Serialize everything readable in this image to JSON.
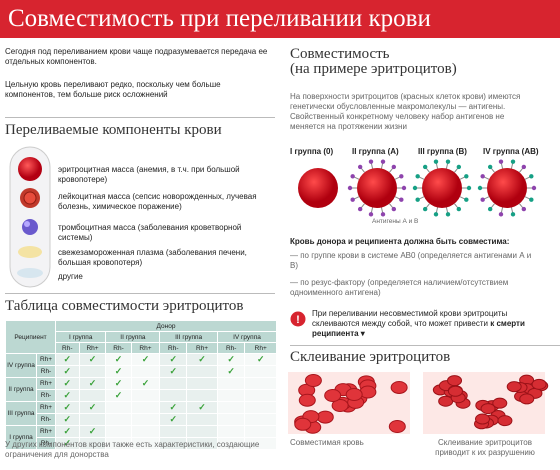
{
  "header": {
    "title": "Совместимость при переливании крови"
  },
  "intro": [
    "Сегодня под переливанием крови чаще подразумевается передача ее отдельных компонентов.",
    "Цельную кровь переливают редко, поскольку чем больше компонентов, тем больше риск осложнений"
  ],
  "components": {
    "title": "Переливаемые компоненты крови",
    "items": [
      "эритроцитная масса (анемия, в т.ч. при большой кровопотере)",
      "лейкоцитная масса (сепсис новорожденных, лучевая болезнь, химическое поражение)",
      "тромбоцитная масса (заболевания кроветворной системы)",
      "свежезамороженная плазма (заболевания печени, большая кровопотеря)",
      "другие"
    ]
  },
  "table": {
    "title": "Таблица совместимости эритроцитов",
    "recipient_header": "Реципиент",
    "donor_header": "Донор",
    "donor_groups": [
      {
        "group": "I группа",
        "rh": [
          "Rh-",
          "Rh+"
        ]
      },
      {
        "group": "II группа",
        "rh": [
          "Rh-",
          "Rh+"
        ]
      },
      {
        "group": "III группа",
        "rh": [
          "Rh-",
          "Rh+"
        ]
      },
      {
        "group": "IV группа",
        "rh": [
          "Rh-",
          "Rh+"
        ]
      }
    ],
    "rows": [
      {
        "group": "IV группа",
        "rh": [
          {
            "label": "Rh+",
            "cells": [
              "✓",
              "✓",
              "✓",
              "✓",
              "✓",
              "✓",
              "✓",
              "✓"
            ]
          },
          {
            "label": "Rh-",
            "cells": [
              "✓",
              null,
              "✓",
              null,
              "✓",
              null,
              "✓",
              null
            ]
          }
        ]
      },
      {
        "group": "II группа",
        "rh": [
          {
            "label": "Rh+",
            "cells": [
              "✓",
              "✓",
              "✓",
              "✓",
              null,
              null,
              null,
              null
            ]
          },
          {
            "label": "Rh-",
            "cells": [
              "✓",
              null,
              "✓",
              null,
              null,
              null,
              null,
              null
            ]
          }
        ]
      },
      {
        "group": "III группа",
        "rh": [
          {
            "label": "Rh+",
            "cells": [
              "✓",
              "✓",
              null,
              null,
              "✓",
              "✓",
              null,
              null
            ]
          },
          {
            "label": "Rh-",
            "cells": [
              "✓",
              null,
              null,
              null,
              "✓",
              null,
              null,
              null
            ]
          }
        ]
      },
      {
        "group": "I группа",
        "rh": [
          {
            "label": "Rh+",
            "cells": [
              "✓",
              "✓",
              null,
              null,
              null,
              null,
              null,
              null
            ]
          },
          {
            "label": "Rh-",
            "cells": [
              "✓",
              null,
              null,
              null,
              null,
              null,
              null,
              null
            ]
          }
        ]
      }
    ],
    "footnote": "У других компонентов крови также есть характеристики, создающие ограничения для донорства"
  },
  "compatibility": {
    "title": [
      "Совместимость",
      "(на примере эритроцитов)"
    ],
    "text": "На поверхности эритроцитов (красных клеток крови) имеются генетически обусловленные макромолекулы — антигены. Свойственный конкретному человеку набор антигенов не меняется на протяжении жизни",
    "groups": [
      "I группа (0)",
      "II группа (A)",
      "III группа (B)",
      "IV группа (AB)"
    ],
    "antigen_label": "Антигены А и В",
    "rule": "Кровь донора и реципиента должна быть совместима:",
    "conditions": [
      "— по группе крови в системе АВ0 (определяется антигенами А и В)",
      "— по резус-фактору (определяется наличием/отсутствием одноименного антигена)"
    ],
    "warning": {
      "text": "При переливании несовместимой крови эритроциты склеиваются между собой, что может привести ",
      "bold": "к смерти реципиента ▾"
    }
  },
  "agglutination": {
    "title": "Склеивание эритроцитов",
    "captions": [
      "Совместимая кровь",
      "Склеивание эритроцитов приводит к их разрушению"
    ]
  }
}
